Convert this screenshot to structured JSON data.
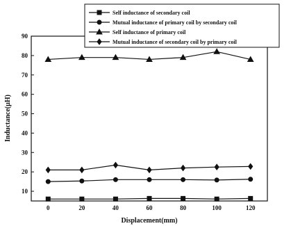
{
  "chart_data": {
    "type": "line",
    "title": "",
    "xlabel": "Displacement(mm)",
    "ylabel": "Inductance(µH)",
    "x": [
      0,
      20,
      40,
      60,
      80,
      100,
      120
    ],
    "xlim": [
      -10,
      130
    ],
    "ylim": [
      5,
      90
    ],
    "xticks": [
      "0",
      "20",
      "40",
      "60",
      "80",
      "100",
      "120"
    ],
    "yticks": [
      "10",
      "20",
      "30",
      "40",
      "50",
      "60",
      "70",
      "80",
      "90"
    ],
    "grid": false,
    "legend_position": "top-right, above plot",
    "series": [
      {
        "name": "Self inductance of secondary coil",
        "marker": "square",
        "color": "#111111",
        "values": [
          6,
          6,
          6,
          6.3,
          6.3,
          6,
          6.3
        ]
      },
      {
        "name": "Mutual inductance of primary coil by secondary coil",
        "marker": "circle",
        "color": "#111111",
        "values": [
          15,
          15.3,
          16,
          16,
          16,
          15.8,
          16.2
        ]
      },
      {
        "name": "Self inductance of primary coil",
        "marker": "triangle",
        "color": "#111111",
        "values": [
          78,
          79,
          79,
          78,
          79,
          82,
          78
        ]
      },
      {
        "name": "Mutual inductance of secondary coil by primary coil",
        "marker": "diamond",
        "color": "#111111",
        "values": [
          21,
          21,
          23.5,
          21,
          22,
          22.5,
          22.8
        ]
      }
    ]
  }
}
